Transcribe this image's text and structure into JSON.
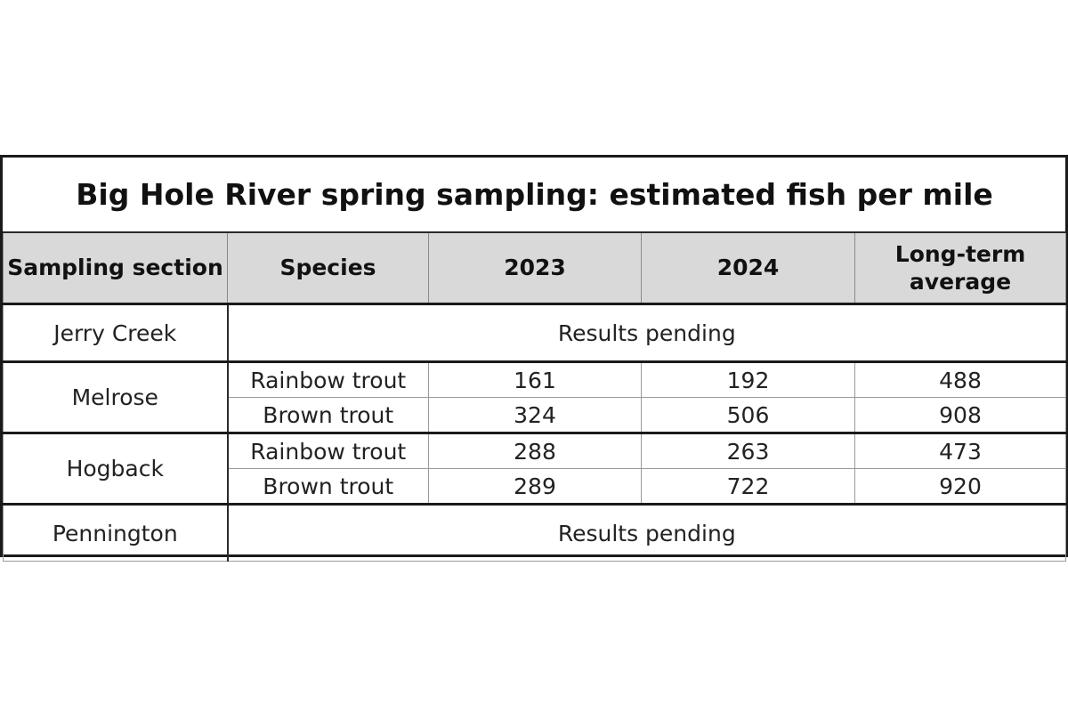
{
  "table": {
    "title": "Big Hole River spring sampling: estimated fish per mile",
    "headers": {
      "section": "Sampling section",
      "species": "Species",
      "y2023": "2023",
      "y2024": "2024",
      "avg": "Long-term average"
    },
    "sections": [
      {
        "name": "Jerry Creek",
        "pending": "Results pending"
      },
      {
        "name": "Melrose",
        "rows": [
          {
            "species": "Rainbow trout",
            "y2023": "161",
            "y2024": "192",
            "avg": "488"
          },
          {
            "species": "Brown trout",
            "y2023": "324",
            "y2024": "506",
            "avg": "908"
          }
        ]
      },
      {
        "name": "Hogback",
        "rows": [
          {
            "species": "Rainbow trout",
            "y2023": "288",
            "y2024": "263",
            "avg": "473"
          },
          {
            "species": "Brown trout",
            "y2023": "289",
            "y2024": "722",
            "avg": "920"
          }
        ]
      },
      {
        "name": "Pennington",
        "pending": "Results pending"
      }
    ]
  }
}
